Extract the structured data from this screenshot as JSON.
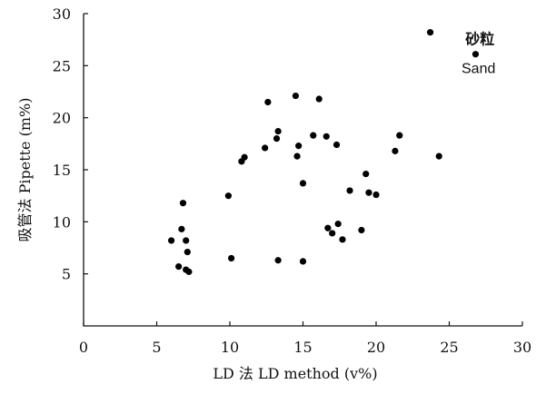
{
  "chart_data": {
    "type": "scatter",
    "xlabel": "LD 法 LD method (v%)",
    "ylabel": "吸管法 Pipette (m%)",
    "xlim": [
      0,
      30
    ],
    "ylim": [
      0,
      30
    ],
    "x_ticks": [
      "0",
      "5",
      "10",
      "15",
      "20",
      "25",
      "30"
    ],
    "y_ticks": [
      "5",
      "10",
      "15",
      "20",
      "25",
      "30"
    ],
    "grid": false,
    "series": [
      {
        "marker_color": "#000000",
        "points": [
          {
            "x": 6.0,
            "y": 8.2
          },
          {
            "x": 6.5,
            "y": 5.7
          },
          {
            "x": 6.7,
            "y": 9.3
          },
          {
            "x": 6.8,
            "y": 11.8
          },
          {
            "x": 7.0,
            "y": 8.2
          },
          {
            "x": 7.0,
            "y": 5.4
          },
          {
            "x": 7.1,
            "y": 7.1
          },
          {
            "x": 7.2,
            "y": 5.2
          },
          {
            "x": 9.9,
            "y": 12.5
          },
          {
            "x": 10.1,
            "y": 6.5
          },
          {
            "x": 10.8,
            "y": 15.8
          },
          {
            "x": 11.0,
            "y": 16.2
          },
          {
            "x": 12.4,
            "y": 17.1
          },
          {
            "x": 12.6,
            "y": 21.5
          },
          {
            "x": 13.2,
            "y": 18.0
          },
          {
            "x": 13.3,
            "y": 18.7
          },
          {
            "x": 13.3,
            "y": 6.3
          },
          {
            "x": 14.5,
            "y": 22.1
          },
          {
            "x": 14.6,
            "y": 16.3
          },
          {
            "x": 14.7,
            "y": 17.3
          },
          {
            "x": 15.0,
            "y": 13.7
          },
          {
            "x": 15.0,
            "y": 6.2
          },
          {
            "x": 15.7,
            "y": 18.3
          },
          {
            "x": 16.1,
            "y": 21.8
          },
          {
            "x": 16.6,
            "y": 18.2
          },
          {
            "x": 16.7,
            "y": 9.4
          },
          {
            "x": 17.0,
            "y": 8.9
          },
          {
            "x": 17.3,
            "y": 17.4
          },
          {
            "x": 17.4,
            "y": 9.8
          },
          {
            "x": 17.7,
            "y": 8.3
          },
          {
            "x": 18.2,
            "y": 13.0
          },
          {
            "x": 19.0,
            "y": 9.2
          },
          {
            "x": 19.3,
            "y": 14.6
          },
          {
            "x": 19.5,
            "y": 12.8
          },
          {
            "x": 20.0,
            "y": 12.6
          },
          {
            "x": 21.3,
            "y": 16.8
          },
          {
            "x": 21.6,
            "y": 18.3
          },
          {
            "x": 23.7,
            "y": 28.2
          },
          {
            "x": 24.3,
            "y": 16.3
          },
          {
            "x": 26.8,
            "y": 26.1
          }
        ]
      }
    ],
    "annotations": [
      {
        "text": "砂粒",
        "x": 27.1,
        "y": 27.6
      },
      {
        "text": "Sand",
        "x": 27.0,
        "y": 24.8
      }
    ]
  }
}
